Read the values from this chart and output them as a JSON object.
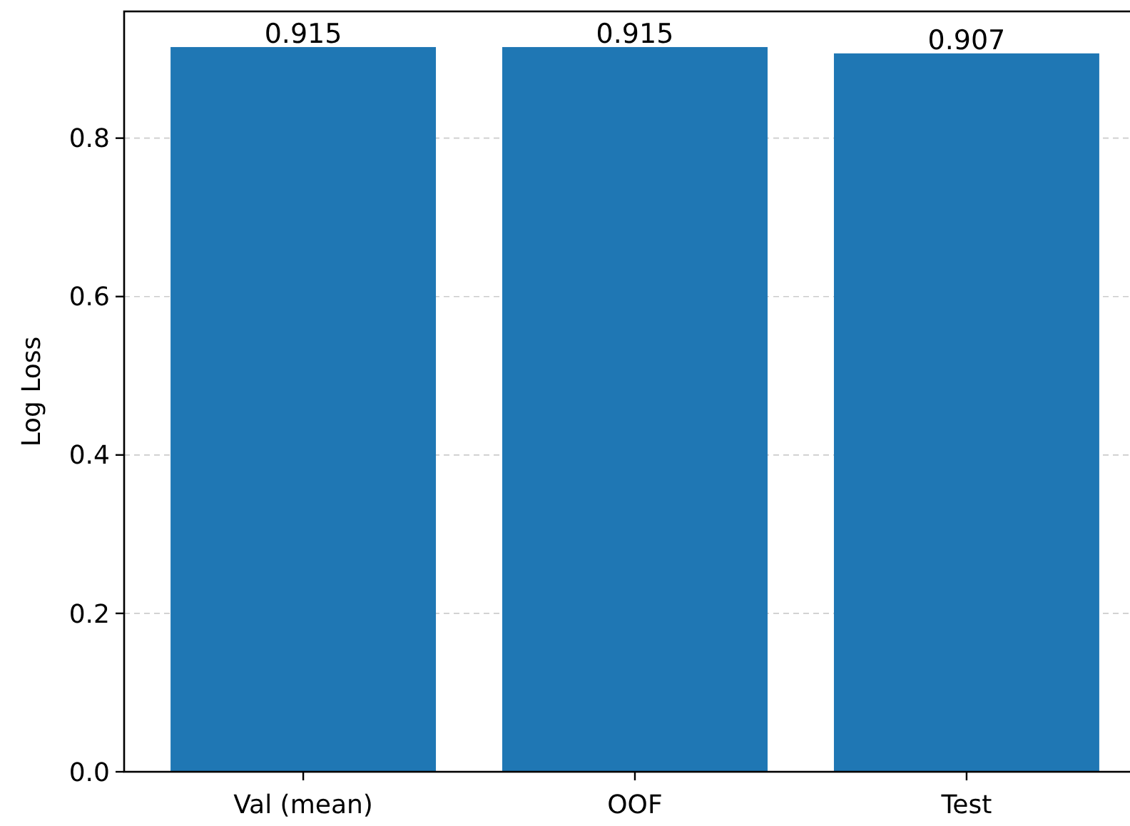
{
  "chart_data": {
    "type": "bar",
    "ylabel": "Log Loss",
    "categories": [
      "Val (mean)",
      "OOF",
      "Test"
    ],
    "values": [
      0.915,
      0.915,
      0.907
    ],
    "color": "#1f77b4",
    "data_labels": true,
    "ylim": [
      0,
      0.96
    ],
    "yticks": [
      {
        "value": 0,
        "label": "0.0"
      },
      {
        "value": 0.2,
        "label": "0.2"
      },
      {
        "value": 0.4,
        "label": "0.4"
      },
      {
        "value": 0.6,
        "label": "0.6"
      },
      {
        "value": 0.8,
        "label": "0.8"
      }
    ],
    "grid": "y"
  }
}
